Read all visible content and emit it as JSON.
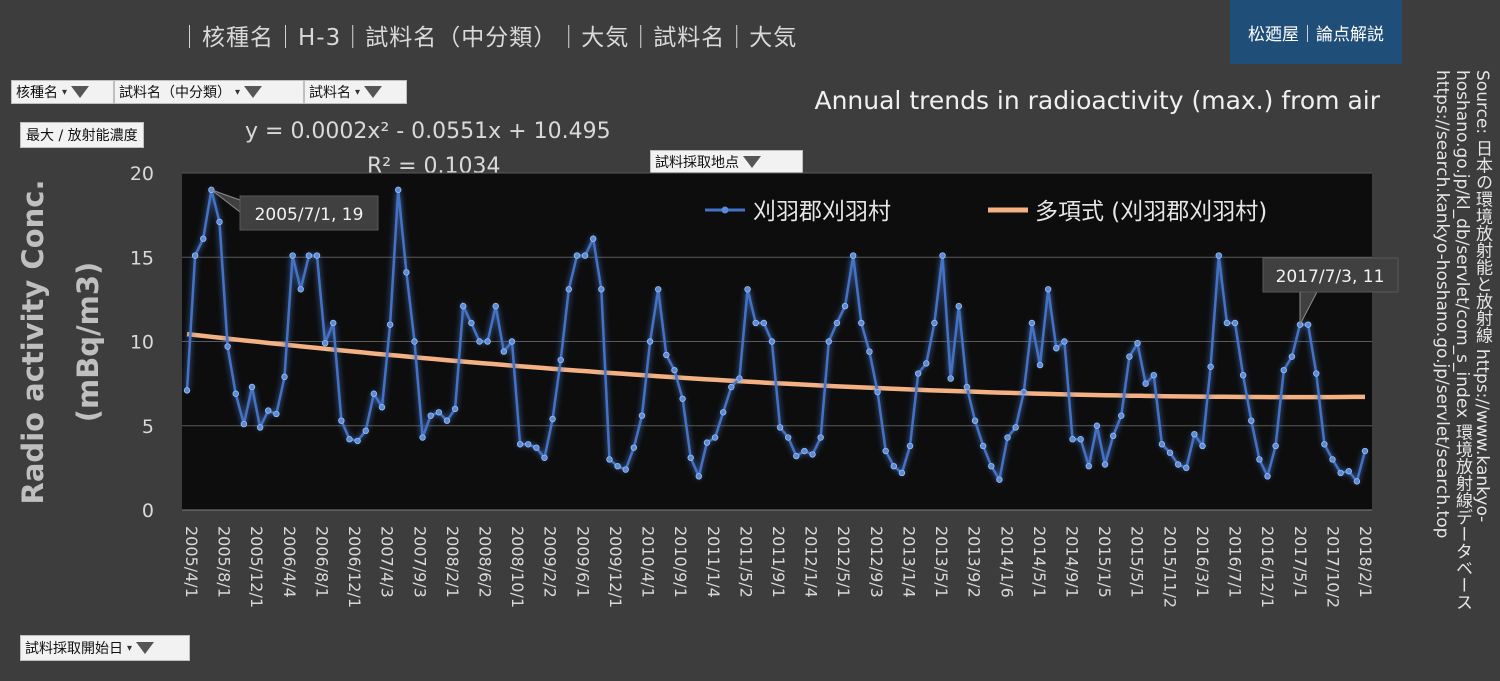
{
  "header": {
    "text": "｜核種名｜H-3｜試料名（中分類）｜大気｜試料名｜大気"
  },
  "brand": {
    "label": "松廼屋｜論点解説"
  },
  "filters": {
    "nuclide": "核種名",
    "sample_mid": "試料名（中分類）",
    "sample": "試料名",
    "location": "試料採取地点",
    "start_date": "試料採取開始日"
  },
  "value_field": "最大 / 放射能濃度",
  "source": "Source: 日本の環境放射能と放射線 https://www.kankyo-hoshano.go.jp/kl_db/servlet/com_s_index 環境放射線データベース https://search.kankyo-hoshano.go.jp/servlet/search.top",
  "chart_data": {
    "type": "line",
    "title": "Annual trends in radioactivity (max.) from air",
    "ylabel": "Radio activity Conc. (mBq/m3)",
    "ylim": [
      0,
      20
    ],
    "yticks": [
      "0",
      "5",
      "10",
      "15",
      "20"
    ],
    "grid": true,
    "legend_position": "top-right",
    "xtick_labels": [
      "2005/4/1",
      "2005/8/1",
      "2005/12/1",
      "2006/4/4",
      "2006/8/1",
      "2006/12/1",
      "2007/4/3",
      "2007/9/3",
      "2008/2/1",
      "2008/6/2",
      "2008/10/1",
      "2009/2/2",
      "2009/6/1",
      "2009/12/1",
      "2010/4/1",
      "2010/9/1",
      "2011/1/4",
      "2011/5/2",
      "2011/9/1",
      "2012/1/4",
      "2012/5/1",
      "2012/9/3",
      "2013/1/4",
      "2013/5/1",
      "2013/9/2",
      "2014/1/6",
      "2014/5/1",
      "2014/9/1",
      "2015/1/5",
      "2015/5/1",
      "2015/11/2",
      "2016/3/1",
      "2016/7/1",
      "2016/12/1",
      "2017/5/1",
      "2017/10/2",
      "2018/2/1"
    ],
    "series": [
      {
        "name": "刈羽郡刈羽村",
        "color": "#4472c4",
        "values": [
          7.1,
          15.1,
          16.1,
          19,
          17.1,
          9.7,
          6.9,
          5.1,
          7.3,
          4.9,
          5.9,
          5.7,
          7.9,
          15.1,
          13.1,
          15.1,
          15.1,
          9.9,
          11.1,
          5.3,
          4.2,
          4.1,
          4.7,
          6.9,
          6.1,
          11,
          19,
          14.1,
          10,
          4.3,
          5.6,
          5.8,
          5.3,
          6,
          12.1,
          11.1,
          10,
          10,
          12.1,
          9.4,
          10,
          3.9,
          3.9,
          3.7,
          3.1,
          5.4,
          8.9,
          13.1,
          15.1,
          15.1,
          16.1,
          13.1,
          3,
          2.6,
          2.4,
          3.7,
          5.6,
          10,
          13.1,
          9.2,
          8.3,
          6.6,
          3.1,
          2,
          4,
          4.3,
          5.8,
          7.3,
          7.8,
          13.1,
          11.1,
          11.1,
          10,
          4.9,
          4.3,
          3.2,
          3.5,
          3.3,
          4.3,
          10,
          11.1,
          12.1,
          15.1,
          11.1,
          9.4,
          7,
          3.5,
          2.6,
          2.2,
          3.8,
          8.1,
          8.7,
          11.1,
          15.1,
          7.8,
          12.1,
          7.3,
          5.3,
          3.8,
          2.6,
          1.8,
          4.3,
          4.9,
          7,
          11.1,
          8.6,
          13.1,
          9.6,
          10,
          4.2,
          4.2,
          2.6,
          5,
          2.7,
          4.4,
          5.6,
          9.1,
          9.9,
          7.5,
          8,
          3.9,
          3.4,
          2.7,
          2.5,
          4.5,
          3.8,
          8.5,
          15.1,
          11.1,
          11.1,
          8,
          5.3,
          3,
          2,
          3.8,
          8.3,
          9.1,
          11,
          11,
          8.1,
          3.9,
          3,
          2.2,
          2.3,
          1.7,
          3.5
        ]
      },
      {
        "name": "多項式 (刈羽郡刈羽村)",
        "type": "poly-trend",
        "color": "#f4b183"
      }
    ],
    "trendline": {
      "equation": "y = 0.0002x² - 0.0551x + 10.495",
      "r2": "R² = 0.1034"
    },
    "annotations": [
      {
        "index": 3,
        "text": "2005/7/1, 19"
      },
      {
        "index": 137,
        "text": "2017/7/3, 11"
      }
    ]
  }
}
